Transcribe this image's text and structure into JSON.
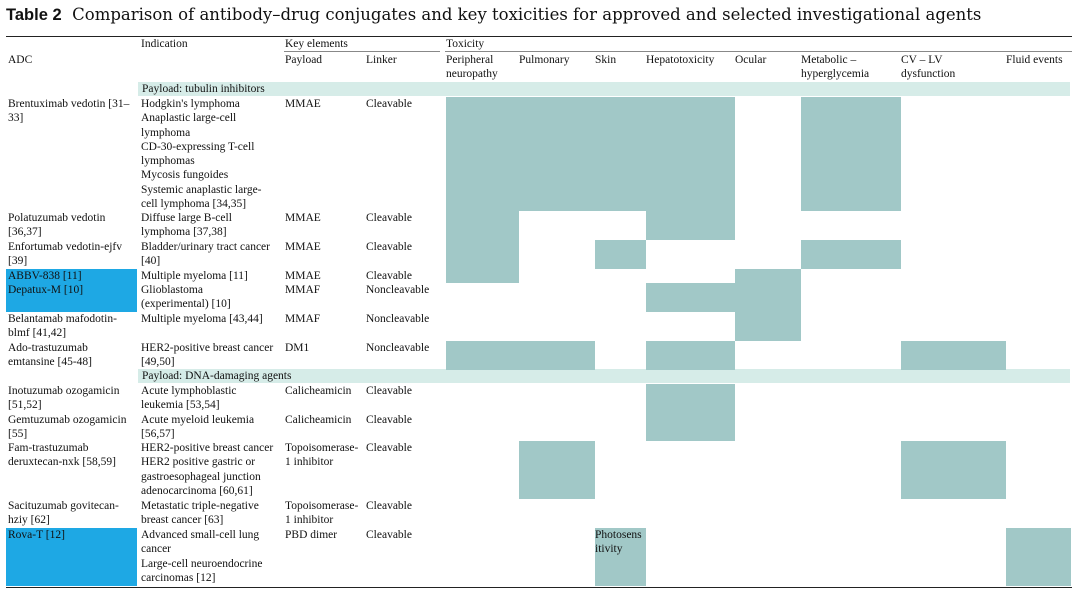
{
  "title": {
    "label": "Table 2",
    "text": "Comparison of antibody–drug conjugates and key toxicities for approved and selected investigational agents"
  },
  "headers": {
    "group_indication": "Indication",
    "group_key_elements": "Key elements",
    "group_toxicity": "Toxicity",
    "adc": "ADC",
    "payload": "Payload",
    "linker": "Linker",
    "tox": [
      "Peripheral\nneuropathy",
      "Pulmonary",
      "Skin",
      "Hepatotoxicity",
      "Ocular",
      "Metabolic –\nhyperglycemia",
      "CV – LV\ndysfunction",
      "Fluid events"
    ]
  },
  "sections": [
    "Payload: tubulin inhibitors",
    "Payload: DNA-damaging agents"
  ],
  "rows": [
    {
      "adc": "Brentuximab vedotin [31–\n33]",
      "indication": "Hodgkin's lymphoma\n Anaplastic large-cell\n lymphoma\n CD-30-expressing T-cell\n lymphomas\n Mycosis fungoides\n Systemic anaplastic large-\n cell lymphoma [34,35]",
      "payload": "MMAE",
      "linker": "Cleavable",
      "tox": [
        1,
        1,
        1,
        1,
        0,
        1,
        0,
        0
      ]
    },
    {
      "adc": "Polatuzumab vedotin\n[36,37]",
      "indication": "Diffuse large B-cell\nlymphoma [37,38]",
      "payload": "MMAE",
      "linker": "Cleavable",
      "tox": [
        1,
        0,
        0,
        1,
        0,
        0,
        0,
        0
      ]
    },
    {
      "adc": "Enfortumab vedotin-ejfv\n[39]",
      "indication": "Bladder/urinary tract cancer\n[40]",
      "payload": "MMAE",
      "linker": "Cleavable",
      "tox": [
        1,
        0,
        1,
        0,
        0,
        1,
        0,
        0
      ]
    },
    {
      "adc": "ABBV-838 [11]",
      "indication": "Multiple myeloma [11]",
      "payload": "MMAE",
      "linker": "Cleavable",
      "tox": [
        1,
        0,
        0,
        0,
        1,
        0,
        0,
        0
      ]
    },
    {
      "adc": "Depatux-M [10]",
      "indication": "Glioblastoma\n(experimental) [10]",
      "payload": "MMAF",
      "linker": "Noncleavable",
      "tox": [
        0,
        0,
        0,
        1,
        1,
        0,
        0,
        0
      ]
    },
    {
      "adc": "Belantamab mafodotin-\nblmf [41,42]",
      "indication": "Multiple myeloma [43,44]",
      "payload": "MMAF",
      "linker": "Noncleavable",
      "tox": [
        0,
        0,
        0,
        0,
        1,
        0,
        0,
        0
      ]
    },
    {
      "adc": "Ado-trastuzumab\nemtansine [45-48]",
      "indication": "HER2-positive breast cancer\n[49,50]",
      "payload": "DM1",
      "linker": "Noncleavable",
      "tox": [
        1,
        1,
        0,
        1,
        0,
        0,
        1,
        0
      ]
    },
    {
      "adc": "Inotuzumab ozogamicin\n[51,52]",
      "indication": "Acute lymphoblastic\nleukemia [53,54]",
      "payload": "Calicheamicin",
      "linker": "Cleavable",
      "tox": [
        0,
        0,
        0,
        1,
        0,
        0,
        0,
        0
      ]
    },
    {
      "adc": "Gemtuzumab ozogamicin\n[55]",
      "indication": "Acute myeloid leukemia\n[56,57]",
      "payload": "Calicheamicin",
      "linker": "Cleavable",
      "tox": [
        0,
        0,
        0,
        1,
        0,
        0,
        0,
        0
      ]
    },
    {
      "adc": "Fam-trastuzumab\nderuxtecan-nxk [58,59]",
      "indication": "HER2-positive breast cancer\nHER2 positive gastric or\ngastroesophageal junction\nadenocarcinoma [60,61]",
      "payload": "Topoisomerase-\n1 inhibitor",
      "linker": "Cleavable",
      "tox": [
        0,
        1,
        0,
        0,
        0,
        0,
        1,
        0
      ]
    },
    {
      "adc": "Sacituzumab govitecan-\nhziy [62]",
      "indication": "Metastatic triple-negative\nbreast cancer [63]",
      "payload": "Topoisomerase-\n1 inhibitor",
      "linker": "Cleavable",
      "tox": [
        0,
        0,
        0,
        0,
        0,
        0,
        0,
        0
      ]
    },
    {
      "adc": "Rova-T [12]",
      "indication": "Advanced small-cell lung\ncancer\nLarge-cell neuroendocrine\ncarcinomas [12]",
      "payload": "PBD dimer",
      "linker": "Cleavable",
      "tox": [
        0,
        0,
        1,
        0,
        0,
        0,
        0,
        1
      ],
      "skin_note": "Photosens\nitivity"
    }
  ],
  "colors": {
    "shade": "#a1c8c7",
    "band": "#d6ece8",
    "highlight": "#1ea8e4"
  }
}
